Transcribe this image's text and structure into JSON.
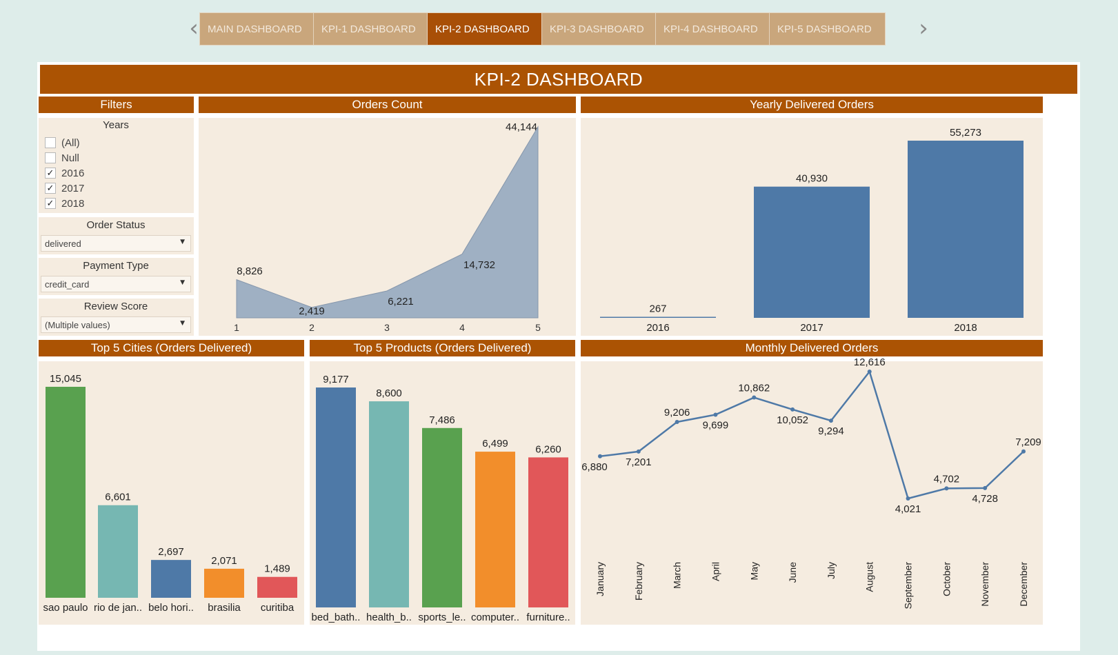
{
  "nav": {
    "tabs": [
      {
        "label": "MAIN DASHBOARD",
        "active": false
      },
      {
        "label": "KPI-1 DASHBOARD",
        "active": false
      },
      {
        "label": "KPI-2 DASHBOARD",
        "active": true
      },
      {
        "label": "KPI-3 DASHBOARD",
        "active": false
      },
      {
        "label": "KPI-4 DASHBOARD",
        "active": false
      },
      {
        "label": "KPI-5 DASHBOARD",
        "active": false
      }
    ],
    "prev_icon": "chevron-left-icon",
    "next_icon": "chevron-right-icon",
    "prev_glyph": "‹",
    "next_glyph": "›"
  },
  "title": "KPI-2 DASHBOARD",
  "colors": {
    "header": "#ab5303",
    "panel_bg": "#f5ece0",
    "tab": "#c9a67c",
    "tab_active": "#a84f07"
  },
  "filters": {
    "header": "Filters",
    "years": {
      "label": "Years",
      "options": [
        {
          "label": "(All)",
          "checked": false
        },
        {
          "label": "Null",
          "checked": false
        },
        {
          "label": "2016",
          "checked": true
        },
        {
          "label": "2017",
          "checked": true
        },
        {
          "label": "2018",
          "checked": true
        }
      ],
      "check_glyph": "✓"
    },
    "order_status": {
      "label": "Order Status",
      "value": "delivered"
    },
    "payment_type": {
      "label": "Payment Type",
      "value": "credit_card"
    },
    "review_score": {
      "label": "Review Score",
      "value": "(Multiple values)"
    },
    "dropdown_arrow": "▼"
  },
  "chart_data": [
    {
      "id": "orders_count",
      "type": "area",
      "title": "Orders Count",
      "categories": [
        "1",
        "2",
        "3",
        "4",
        "5"
      ],
      "values": [
        8826,
        2419,
        6221,
        14732,
        44144
      ],
      "labels": [
        "8,826",
        "2,419",
        "6,221",
        "14,732",
        "44,144"
      ],
      "color": "#9fb0c3",
      "ylim": [
        0,
        44144
      ]
    },
    {
      "id": "yearly_delivered",
      "type": "bar",
      "title": "Yearly Delivered Orders",
      "categories": [
        "2016",
        "2017",
        "2018"
      ],
      "values": [
        267,
        40930,
        55273
      ],
      "labels": [
        "267",
        "40,930",
        "55,273"
      ],
      "color": "#4e79a7",
      "ylim": [
        0,
        55273
      ]
    },
    {
      "id": "top_cities",
      "type": "bar",
      "title": "Top 5 Cities (Orders Delivered)",
      "categories": [
        "sao paulo",
        "rio de jan..",
        "belo hori..",
        "brasilia",
        "curitiba"
      ],
      "values": [
        15045,
        6601,
        2697,
        2071,
        1489
      ],
      "labels": [
        "15,045",
        "6,601",
        "2,697",
        "2,071",
        "1,489"
      ],
      "colors": [
        "#59a14f",
        "#76b7b2",
        "#4e79a7",
        "#f28e2b",
        "#e15759"
      ],
      "ylim": [
        0,
        15045
      ]
    },
    {
      "id": "top_products",
      "type": "bar",
      "title": "Top 5 Products (Orders Delivered)",
      "categories": [
        "bed_bath..",
        "health_b..",
        "sports_le..",
        "computer..",
        "furniture.."
      ],
      "values": [
        9177,
        8600,
        7486,
        6499,
        6260
      ],
      "labels": [
        "9,177",
        "8,600",
        "7,486",
        "6,499",
        "6,260"
      ],
      "colors": [
        "#4e79a7",
        "#76b7b2",
        "#59a14f",
        "#f28e2b",
        "#e15759"
      ],
      "ylim": [
        0,
        9177
      ]
    },
    {
      "id": "monthly_delivered",
      "type": "line",
      "title": "Monthly Delivered Orders",
      "categories": [
        "January",
        "February",
        "March",
        "April",
        "May",
        "June",
        "July",
        "August",
        "September",
        "October",
        "November",
        "December"
      ],
      "values": [
        6880,
        7201,
        9206,
        9699,
        10862,
        10052,
        9294,
        12616,
        4021,
        4702,
        4728,
        7209
      ],
      "labels": [
        "6,880",
        "7,201",
        "9,206",
        "9,699",
        "10,862",
        "10,052",
        "9,294",
        "12,616",
        "4,021",
        "4,702",
        "4,728",
        "7,209"
      ],
      "label_pos": [
        "below",
        "below",
        "above",
        "below",
        "above",
        "below",
        "below",
        "above",
        "below",
        "above",
        "below",
        "above"
      ],
      "color": "#4e79a7",
      "ylim": [
        4021,
        12616
      ]
    }
  ]
}
